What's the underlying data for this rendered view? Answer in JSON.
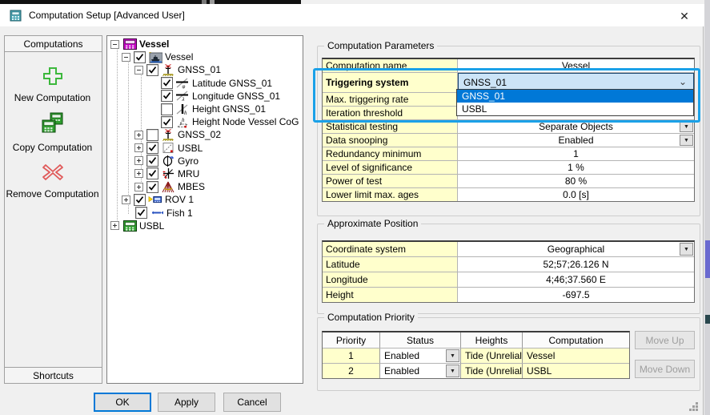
{
  "window": {
    "title": "Computation Setup [Advanced User]",
    "close_label": "✕",
    "app_icon": "calculator-icon"
  },
  "left_panel": {
    "header": "Computations",
    "actions": [
      {
        "icon": "add-icon",
        "label": "New Computation"
      },
      {
        "icon": "copy-icon",
        "label": "Copy Computation"
      },
      {
        "icon": "remove-icon",
        "label": "Remove Computation"
      }
    ],
    "footer": "Shortcuts"
  },
  "tree": {
    "items": [
      {
        "indent": 4,
        "expand": "minus",
        "checked": null,
        "icon": "computation-icon",
        "label": "Vessel",
        "bold": true
      },
      {
        "indent": 18,
        "expand": "minus",
        "checked": true,
        "icon": "vessel-icon",
        "label": "Vessel"
      },
      {
        "indent": 34,
        "expand": "minus",
        "checked": true,
        "icon": "gnss-antenna-icon",
        "label": "GNSS_01"
      },
      {
        "indent": 67,
        "expand": null,
        "checked": true,
        "icon": "latitude-icon",
        "label": "Latitude GNSS_01"
      },
      {
        "indent": 67,
        "expand": null,
        "checked": true,
        "icon": "longitude-icon",
        "label": "Longitude GNSS_01"
      },
      {
        "indent": 67,
        "expand": null,
        "checked": false,
        "icon": "height-icon",
        "label": "Height GNSS_01"
      },
      {
        "indent": 67,
        "expand": null,
        "checked": true,
        "icon": "height-node-icon",
        "label": "Height Node Vessel CoG"
      },
      {
        "indent": 34,
        "expand": "plus",
        "checked": false,
        "icon": "gnss-antenna-icon",
        "label": "GNSS_02"
      },
      {
        "indent": 34,
        "expand": "plus",
        "checked": true,
        "icon": "usbl-node-icon",
        "label": "USBL"
      },
      {
        "indent": 34,
        "expand": "plus",
        "checked": true,
        "icon": "gyro-icon",
        "label": "Gyro"
      },
      {
        "indent": 34,
        "expand": "plus",
        "checked": true,
        "icon": "mru-icon",
        "label": "MRU"
      },
      {
        "indent": 34,
        "expand": "plus",
        "checked": true,
        "icon": "mbes-icon",
        "label": "MBES"
      },
      {
        "indent": 18,
        "expand": "plus",
        "checked": true,
        "icon": "rov-icon",
        "label": "ROV 1"
      },
      {
        "indent": 35,
        "expand": null,
        "checked": true,
        "icon": "fish-icon",
        "label": "Fish 1"
      },
      {
        "indent": 4,
        "expand": "plus",
        "checked": null,
        "icon": "usbl-computation-icon",
        "label": "USBL"
      }
    ]
  },
  "computation_parameters": {
    "title": "Computation Parameters",
    "rows": [
      {
        "label": "Computation name",
        "value": "Vessel",
        "control": "none"
      },
      {
        "label": "Triggering system",
        "value": "GNSS_01",
        "control": "combo-open",
        "bold": true
      },
      {
        "label": "Max. triggering rate",
        "value": "",
        "control": "none"
      },
      {
        "label": "Iteration threshold",
        "value": "",
        "control": "none"
      },
      {
        "label": "Statistical testing",
        "value": "Separate Objects",
        "control": "dropdown"
      },
      {
        "label": "Data snooping",
        "value": "Enabled",
        "control": "dropdown"
      },
      {
        "label": "Redundancy minimum",
        "value": "1",
        "control": "none"
      },
      {
        "label": "Level of significance",
        "value": "1 %",
        "control": "none"
      },
      {
        "label": "Power of test",
        "value": "80 %",
        "control": "none"
      },
      {
        "label": "Lower limit max. ages",
        "value": "0.0 [s]",
        "control": "none"
      }
    ]
  },
  "triggering_dropdown": {
    "value": "GNSS_01",
    "options": [
      "GNSS_01",
      "USBL"
    ],
    "selected_index": 0
  },
  "approximate_position": {
    "title": "Approximate Position",
    "rows": [
      {
        "label": "Coordinate system",
        "value": "Geographical",
        "control": "dropdown"
      },
      {
        "label": "Latitude",
        "value": "52;57;26.126 N",
        "control": "none"
      },
      {
        "label": "Longitude",
        "value": "4;46;37.560 E",
        "control": "none"
      },
      {
        "label": "Height",
        "value": "-697.5",
        "control": "none"
      }
    ]
  },
  "computation_priority": {
    "title": "Computation Priority",
    "headers": [
      "Priority",
      "Status",
      "Heights",
      "Computation"
    ],
    "rows": [
      {
        "priority": "1",
        "status": "Enabled",
        "heights": "Tide (Unrelial",
        "computation": "Vessel"
      },
      {
        "priority": "2",
        "status": "Enabled",
        "heights": "Tide (Unrelial",
        "computation": "USBL"
      }
    ],
    "move_up_label": "Move Up",
    "move_down_label": "Move Down"
  },
  "footer_buttons": {
    "ok": "OK",
    "apply": "Apply",
    "cancel": "Cancel"
  },
  "colors": {
    "cell_yellow": "#ffffcc",
    "selection_blue": "#0078d7",
    "combo_face_blue": "#cce4f7",
    "annotation_blue": "#1ba1e8",
    "disabled_text": "#9e9e9e"
  }
}
